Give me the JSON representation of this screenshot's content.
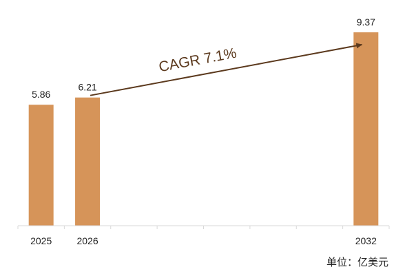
{
  "chart_data": {
    "type": "bar",
    "categories": [
      "2025",
      "2026",
      "",
      "",
      "",
      "",
      "",
      "2032"
    ],
    "values": [
      5.86,
      6.21,
      null,
      null,
      null,
      null,
      null,
      9.37
    ],
    "data_labels": [
      "5.86",
      "6.21",
      "",
      "",
      "",
      "",
      "",
      "9.37"
    ],
    "ylim": [
      0,
      10
    ],
    "grid": false,
    "annotation": {
      "text": "CAGR 7.1%",
      "from_category": "2026",
      "to_category": "2032"
    },
    "unit": "单位：亿美元",
    "colors": {
      "bar": "#D69459",
      "arrow": "#5C3A1E",
      "axis": "#D9D9D9",
      "text": "#222222"
    }
  }
}
